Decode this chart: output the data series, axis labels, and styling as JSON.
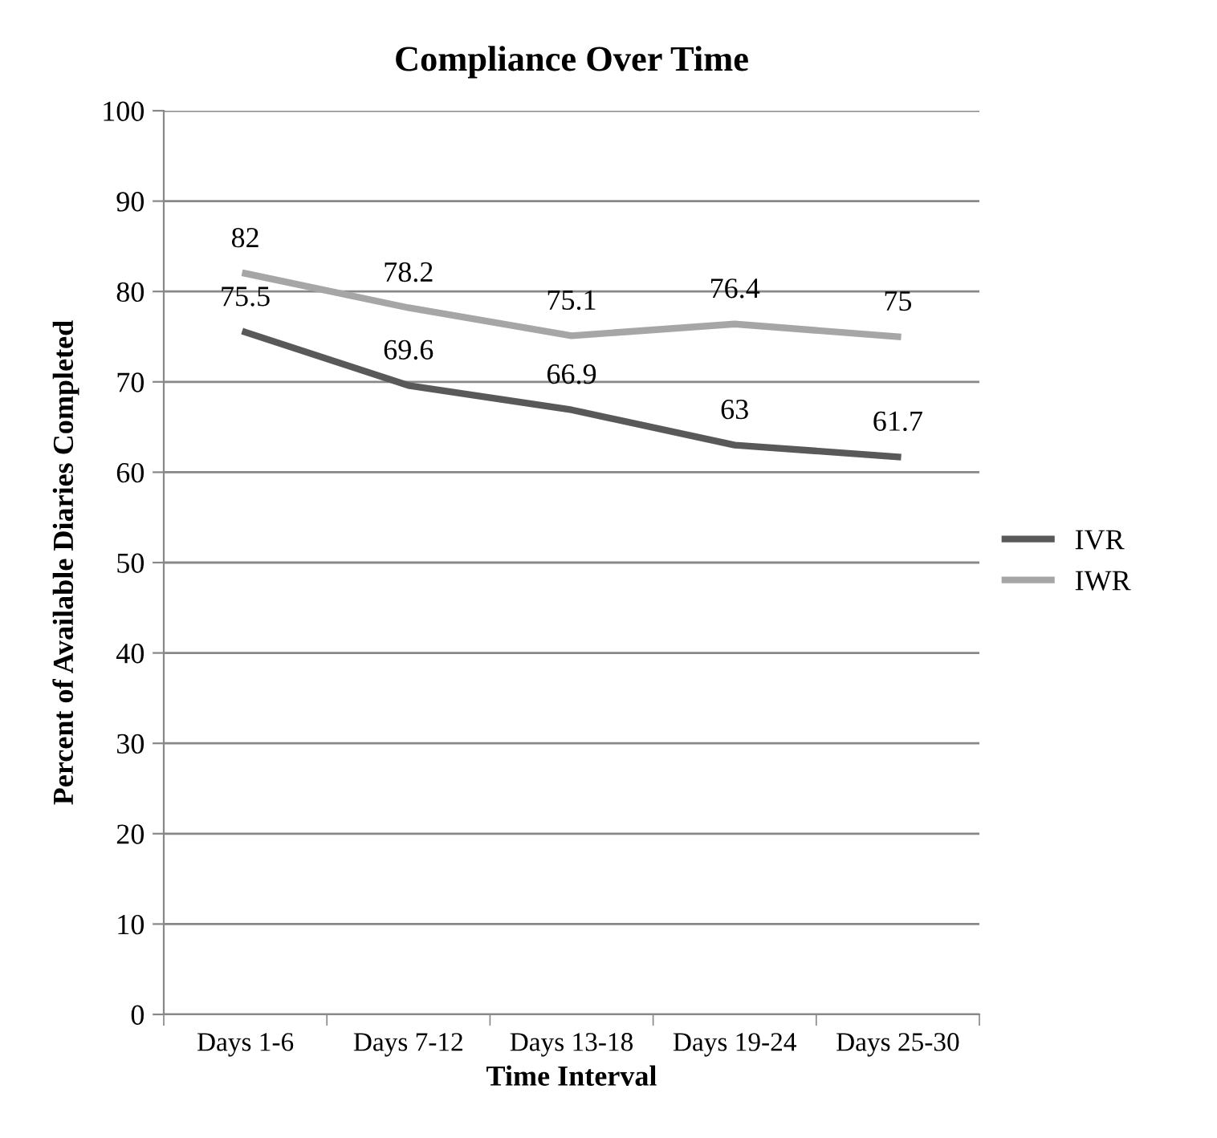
{
  "chart_data": {
    "type": "line",
    "title": "Compliance Over Time",
    "xlabel": "Time Interval",
    "ylabel": "Percent of Available Diaries Completed",
    "categories": [
      "Days 1-6",
      "Days 7-12",
      "Days 13-18",
      "Days 19-24",
      "Days 25-30"
    ],
    "series": [
      {
        "name": "IVR",
        "color": "#595959",
        "values": [
          75.5,
          69.6,
          66.9,
          63,
          61.7
        ]
      },
      {
        "name": "IWR",
        "color": "#a6a6a6",
        "values": [
          82,
          78.2,
          75.1,
          76.4,
          75
        ]
      }
    ],
    "ylim": [
      0,
      100
    ],
    "yticks": [
      0,
      10,
      20,
      30,
      40,
      50,
      60,
      70,
      80,
      90,
      100
    ],
    "grid": "y",
    "legend": "right",
    "data_labels": true,
    "marker": "none",
    "line_style": "solid"
  }
}
